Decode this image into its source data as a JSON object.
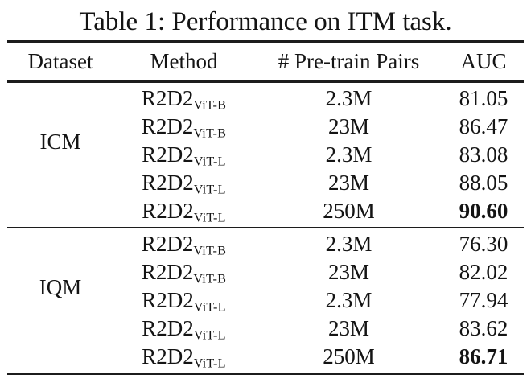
{
  "title": "Table 1: Performance on ITM task.",
  "colors": {
    "text": "#141414",
    "background": "#ffffff",
    "rule": "#1c1c1c"
  },
  "chart_data": {
    "type": "table",
    "title": "Table 1: Performance on ITM task.",
    "headers": [
      "Dataset",
      "Method",
      "# Pre-train Pairs",
      "AUC"
    ],
    "groups": [
      {
        "dataset": "ICM",
        "rows": [
          {
            "method_base": "R2D2",
            "method_sub": "ViT-B",
            "pairs": "2.3M",
            "auc": "81.05",
            "bold": false
          },
          {
            "method_base": "R2D2",
            "method_sub": "ViT-B",
            "pairs": "23M",
            "auc": "86.47",
            "bold": false
          },
          {
            "method_base": "R2D2",
            "method_sub": "ViT-L",
            "pairs": "2.3M",
            "auc": "83.08",
            "bold": false
          },
          {
            "method_base": "R2D2",
            "method_sub": "ViT-L",
            "pairs": "23M",
            "auc": "88.05",
            "bold": false
          },
          {
            "method_base": "R2D2",
            "method_sub": "ViT-L",
            "pairs": "250M",
            "auc": "90.60",
            "bold": true
          }
        ]
      },
      {
        "dataset": "IQM",
        "rows": [
          {
            "method_base": "R2D2",
            "method_sub": "ViT-B",
            "pairs": "2.3M",
            "auc": "76.30",
            "bold": false
          },
          {
            "method_base": "R2D2",
            "method_sub": "ViT-B",
            "pairs": "23M",
            "auc": "82.02",
            "bold": false
          },
          {
            "method_base": "R2D2",
            "method_sub": "ViT-L",
            "pairs": "2.3M",
            "auc": "77.94",
            "bold": false
          },
          {
            "method_base": "R2D2",
            "method_sub": "ViT-L",
            "pairs": "23M",
            "auc": "83.62",
            "bold": false
          },
          {
            "method_base": "R2D2",
            "method_sub": "ViT-L",
            "pairs": "250M",
            "auc": "86.71",
            "bold": true
          }
        ]
      }
    ]
  }
}
